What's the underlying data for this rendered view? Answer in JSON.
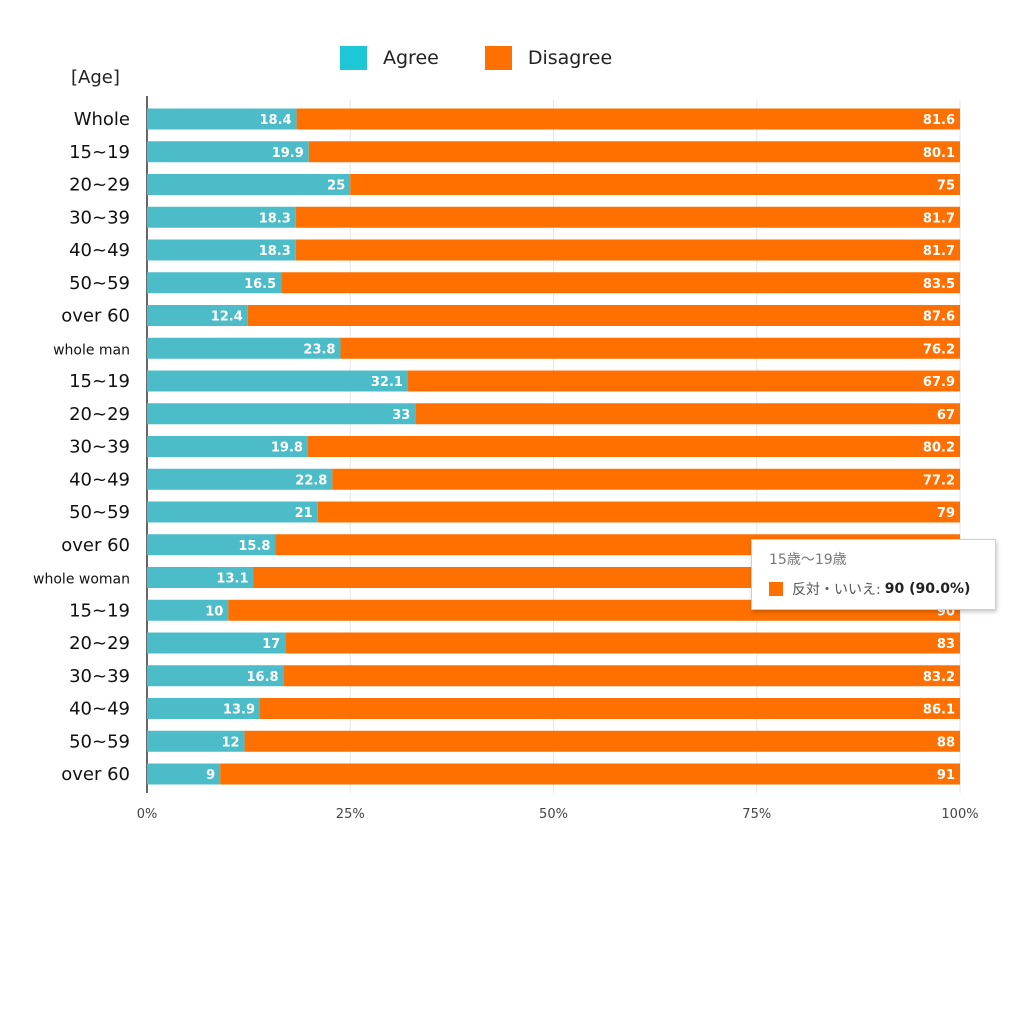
{
  "axis_title": "[Age]",
  "colors": {
    "agree": "#4cbcc8",
    "disagree": "#ff7000",
    "legend_agree": "#1ec7d6",
    "grid": "#e6e6e6",
    "axis": "#333333"
  },
  "legend": [
    {
      "label": "Agree"
    },
    {
      "label": "Disagree"
    }
  ],
  "tooltip": {
    "title": "15歳〜19歳",
    "label": "反対・いいえ:",
    "value": "90 (90.0%)"
  },
  "chart_data": {
    "type": "bar",
    "orientation": "horizontal",
    "stacked": true,
    "categories": [
      "Whole",
      "15~19",
      "20~29",
      "30~39",
      "40~49",
      "50~59",
      "over 60",
      "whole man",
      "15~19",
      "20~29",
      "30~39",
      "40~49",
      "50~59",
      "over 60",
      "whole woman",
      "15~19",
      "20~29",
      "30~39",
      "40~49",
      "50~59",
      "over 60"
    ],
    "series": [
      {
        "name": "Agree",
        "values": [
          18.4,
          19.9,
          25,
          18.3,
          18.3,
          16.5,
          12.4,
          23.8,
          32.1,
          33,
          19.8,
          22.8,
          21,
          15.8,
          13.1,
          10,
          17,
          16.8,
          13.9,
          12,
          9
        ]
      },
      {
        "name": "Disagree",
        "values": [
          81.6,
          80.1,
          75,
          81.7,
          81.7,
          83.5,
          87.6,
          76.2,
          67.9,
          67,
          80.2,
          77.2,
          79,
          84.2,
          86.9,
          90,
          83,
          83.2,
          86.1,
          88,
          91
        ]
      }
    ],
    "xlim": [
      0,
      100
    ],
    "xticks": [
      "0%",
      "25%",
      "50%",
      "75%",
      "100%"
    ],
    "grid": true,
    "legend_position": "top"
  }
}
